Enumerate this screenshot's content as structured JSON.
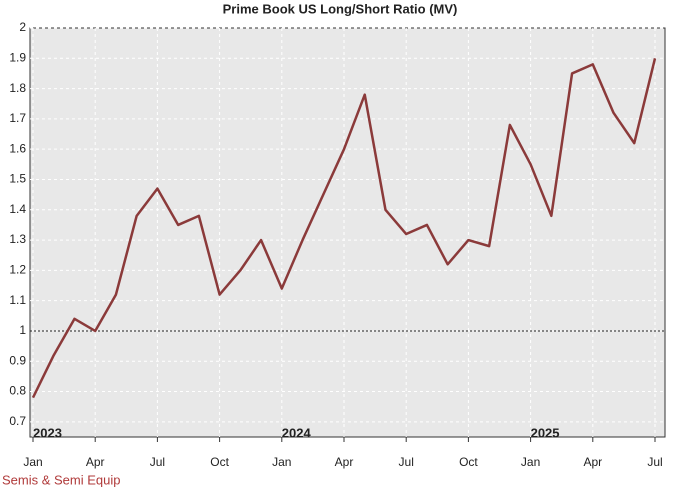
{
  "chart_data": {
    "type": "line",
    "title": "Prime Book US Long/Short Ratio (MV)",
    "footer": "Semis & Semi Equip",
    "x": [
      "2023-01",
      "2023-02",
      "2023-03",
      "2023-04",
      "2023-05",
      "2023-06",
      "2023-07",
      "2023-08",
      "2023-09",
      "2023-10",
      "2023-11",
      "2023-12",
      "2024-01",
      "2024-02",
      "2024-03",
      "2024-04",
      "2024-05",
      "2024-06",
      "2024-07",
      "2024-08",
      "2024-09",
      "2024-10",
      "2024-11",
      "2024-12",
      "2025-01",
      "2025-02",
      "2025-03",
      "2025-04",
      "2025-05",
      "2025-06",
      "2025-07"
    ],
    "series": [
      {
        "name": "Long/Short Ratio",
        "color": "#8b3a3a",
        "values": [
          0.78,
          0.92,
          1.04,
          1.0,
          1.12,
          1.38,
          1.47,
          1.35,
          1.38,
          1.12,
          1.2,
          1.3,
          1.14,
          1.3,
          1.45,
          1.6,
          1.78,
          1.4,
          1.32,
          1.35,
          1.22,
          1.3,
          1.28,
          1.68,
          1.55,
          1.38,
          1.85,
          1.88,
          1.72,
          1.62,
          1.9
        ]
      }
    ],
    "xlim": [
      "2023-01",
      "2025-07"
    ],
    "xticks": [
      {
        "value": "2023-01",
        "label": "Jan"
      },
      {
        "value": "2023-04",
        "label": "Apr"
      },
      {
        "value": "2023-07",
        "label": "Jul"
      },
      {
        "value": "2023-10",
        "label": "Oct"
      },
      {
        "value": "2024-01",
        "label": "Jan"
      },
      {
        "value": "2024-04",
        "label": "Apr"
      },
      {
        "value": "2024-07",
        "label": "Jul"
      },
      {
        "value": "2024-10",
        "label": "Oct"
      },
      {
        "value": "2025-01",
        "label": "Jan"
      },
      {
        "value": "2025-04",
        "label": "Apr"
      },
      {
        "value": "2025-07",
        "label": "Jul"
      }
    ],
    "year_labels": [
      {
        "x": "2023-01",
        "text": "2023"
      },
      {
        "x": "2024-01",
        "text": "2024"
      },
      {
        "x": "2025-01",
        "text": "2025"
      }
    ],
    "ylim": [
      0.65,
      2
    ],
    "yticks": [
      0.7,
      0.8,
      0.9,
      1,
      1.1,
      1.2,
      1.3,
      1.4,
      1.5,
      1.6,
      1.7,
      1.8,
      1.9,
      2
    ],
    "reference_line": 1,
    "grid": true
  }
}
